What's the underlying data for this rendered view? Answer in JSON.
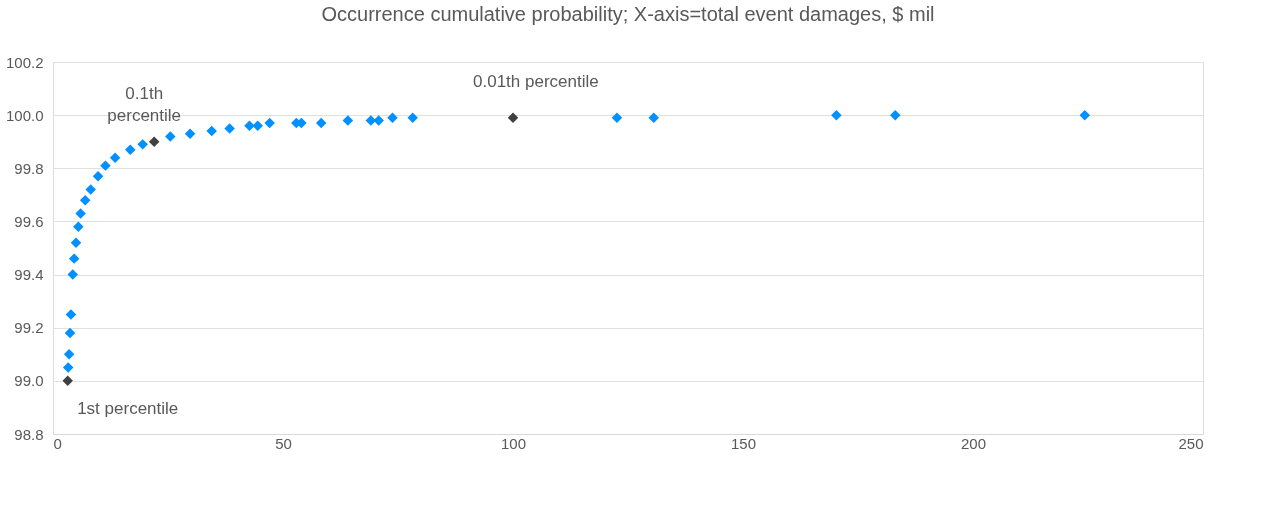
{
  "chart_data": {
    "type": "scatter",
    "title": "Occurrence cumulative probability; X-axis=total event damages, $ mil",
    "series": [
      {
        "color": "#0090ff",
        "x": [
          3.3,
          3.5,
          3.7,
          3.9,
          4.3,
          4.6,
          5.0,
          5.5,
          6.0,
          7.0,
          8.2,
          9.8,
          11.4,
          13.5,
          16.8,
          19.5,
          25.5,
          29.8,
          34.5,
          38.4,
          42.7,
          44.5,
          47.1,
          52.9,
          54.0,
          58.3,
          64.1,
          69.1,
          70.8,
          73.8,
          78.2,
          122.6,
          130.6,
          170.3,
          183.1,
          224.3
        ],
        "values": [
          99.05,
          99.1,
          99.18,
          99.25,
          99.4,
          99.46,
          99.52,
          99.58,
          99.63,
          99.68,
          99.72,
          99.77,
          99.81,
          99.84,
          99.87,
          99.89,
          99.92,
          99.93,
          99.94,
          99.95,
          99.96,
          99.96,
          99.97,
          99.97,
          99.97,
          99.97,
          99.98,
          99.98,
          99.98,
          99.99,
          99.99,
          99.99,
          99.99,
          100.0,
          100.0,
          100.0
        ]
      },
      {
        "color": "#404040",
        "x": [
          3.2,
          22.0,
          100.0
        ],
        "values": [
          99.0,
          99.9,
          99.99
        ]
      }
    ],
    "xlim": [
      0,
      250
    ],
    "xticks": [
      0,
      50,
      100,
      150,
      200,
      250
    ],
    "ylim": [
      98.8,
      100.2
    ],
    "yticks": [
      {
        "value": 98.8,
        "label": "98.8"
      },
      {
        "value": 99,
        "label": "99.0"
      },
      {
        "value": 99.2,
        "label": "99.2"
      },
      {
        "value": 99.4,
        "label": "99.4"
      },
      {
        "value": 99.6,
        "label": "99.6"
      },
      {
        "value": 99.8,
        "label": "99.8"
      },
      {
        "value": 100,
        "label": "100.0"
      },
      {
        "value": 100.2,
        "label": "100.2"
      }
    ],
    "annotations": [
      {
        "text": "1st percentile",
        "x": 3.2,
        "y": 99.0
      },
      {
        "text": "0.1th percentile",
        "x": 22.0,
        "y": 99.9
      },
      {
        "text": "0.01th percentile",
        "x": 100.0,
        "y": 99.99
      }
    ],
    "grid": "y",
    "marker": "diamond"
  }
}
